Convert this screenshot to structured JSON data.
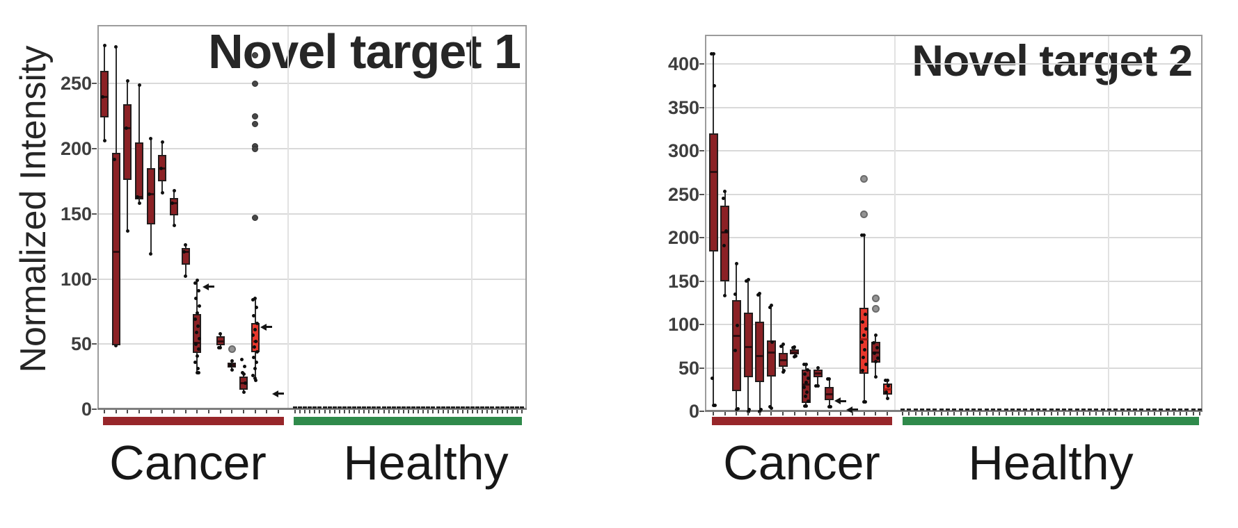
{
  "chart_data": [
    {
      "type": "box",
      "title": "Novel target 1",
      "ylabel": "Normalized Intensity",
      "xlabel": "",
      "ylim": [
        0,
        295
      ],
      "y_ticks": [
        0,
        50,
        100,
        150,
        200,
        250
      ],
      "grid": true,
      "legend_position": "none",
      "groups": [
        {
          "name": "Cancer",
          "color": "#97262a",
          "n_samples": 16
        },
        {
          "name": "Healthy",
          "color": "#2f8a4b",
          "n_samples": 47
        }
      ],
      "box_fill": "#8b2125",
      "box_fill_bright": "#e8372c",
      "point_color": "#111111",
      "gray_outlier_color": "#949494",
      "cancer_series": [
        {
          "kind": "box",
          "q1": 224,
          "median": 240,
          "q3": 260,
          "lo": 206,
          "hi": 279,
          "points": [
            240
          ]
        },
        {
          "kind": "box",
          "q1": 49,
          "median": 121,
          "q3": 197,
          "lo": 49,
          "hi": 278,
          "points": [
            192
          ]
        },
        {
          "kind": "box",
          "q1": 176,
          "median": 216,
          "q3": 234,
          "lo": 137,
          "hi": 252,
          "points": [
            216
          ]
        },
        {
          "kind": "box",
          "q1": 161,
          "median": 163,
          "q3": 205,
          "lo": 158,
          "hi": 249,
          "points": [
            163
          ]
        },
        {
          "kind": "box",
          "q1": 142,
          "median": 165,
          "q3": 185,
          "lo": 119,
          "hi": 208,
          "points": [
            165
          ]
        },
        {
          "kind": "box",
          "q1": 175,
          "median": 185,
          "q3": 195,
          "lo": 166,
          "hi": 205,
          "points": [
            185
          ]
        },
        {
          "kind": "box",
          "q1": 149,
          "median": 158,
          "q3": 162,
          "lo": 141,
          "hi": 168,
          "points": [
            158
          ]
        },
        {
          "kind": "box",
          "q1": 111,
          "median": 121,
          "q3": 124,
          "lo": 102,
          "hi": 126,
          "points": [
            121
          ]
        },
        {
          "kind": "box",
          "q1": 43,
          "median": 51,
          "q3": 73,
          "lo": 28,
          "hi": 99,
          "jitter": [
            97,
            91,
            85,
            79,
            74,
            69,
            64,
            59,
            54,
            50,
            46,
            41,
            36,
            31,
            28
          ]
        },
        {
          "kind": "dash",
          "value": 94
        },
        {
          "kind": "box",
          "q1": 49,
          "median": 52,
          "q3": 56,
          "lo": 47,
          "hi": 58,
          "points": [
            47
          ]
        },
        {
          "kind": "box",
          "q1": 32,
          "median": 34,
          "q3": 36,
          "lo": 30,
          "hi": 37,
          "gray_outliers": [
            46
          ],
          "points": [
            34
          ]
        },
        {
          "kind": "box",
          "q1": 15,
          "median": 20,
          "q3": 25,
          "lo": 13,
          "hi": 27,
          "points": [
            38,
            33,
            28,
            20
          ]
        },
        {
          "kind": "box",
          "q1": 44,
          "median": 52,
          "q3": 66,
          "lo": 24,
          "hi": 85,
          "bright": true,
          "dark_outliers": [
            272,
            250,
            225,
            219,
            202,
            200,
            147
          ],
          "jitter": [
            84,
            78,
            72,
            66,
            61,
            57,
            52,
            48,
            44,
            40,
            36,
            31,
            26,
            22
          ]
        },
        {
          "kind": "dash",
          "value": 63
        },
        {
          "kind": "dash",
          "value": 12
        }
      ],
      "healthy_series": {
        "n": 47,
        "value": 0
      }
    },
    {
      "type": "box",
      "title": "Novel target 2",
      "ylabel": "Normalized Intensity",
      "xlabel": "",
      "ylim": [
        0,
        434
      ],
      "y_ticks": [
        0,
        50,
        100,
        150,
        200,
        250,
        300,
        350,
        400
      ],
      "grid": true,
      "legend_position": "none",
      "groups": [
        {
          "name": "Cancer",
          "color": "#97262a",
          "n_samples": 16
        },
        {
          "name": "Healthy",
          "color": "#2f8a4b",
          "n_samples": 47
        }
      ],
      "box_fill": "#8b2125",
      "box_fill_bright": "#e8372c",
      "point_color": "#111111",
      "gray_outlier_color": "#949494",
      "cancer_series": [
        {
          "kind": "box",
          "q1": 184,
          "median": 276,
          "q3": 320,
          "lo": 7,
          "hi": 412,
          "points": [
            412,
            375,
            38,
            7
          ]
        },
        {
          "kind": "box",
          "q1": 150,
          "median": 206,
          "q3": 237,
          "lo": 133,
          "hi": 253,
          "points": [
            245,
            208,
            191
          ]
        },
        {
          "kind": "box",
          "q1": 23,
          "median": 87,
          "q3": 128,
          "lo": 2,
          "hi": 170,
          "points": [
            135,
            99,
            70,
            3
          ]
        },
        {
          "kind": "box",
          "q1": 39,
          "median": 74,
          "q3": 114,
          "lo": 0,
          "hi": 152,
          "points": [
            150,
            2
          ]
        },
        {
          "kind": "box",
          "q1": 34,
          "median": 64,
          "q3": 103,
          "lo": 0,
          "hi": 136,
          "points": [
            134,
            2
          ]
        },
        {
          "kind": "box",
          "q1": 40,
          "median": 68,
          "q3": 82,
          "lo": 4,
          "hi": 122,
          "points": [
            120,
            80,
            5
          ]
        },
        {
          "kind": "box",
          "q1": 51,
          "median": 59,
          "q3": 67,
          "lo": 45,
          "hi": 77,
          "points": [
            75,
            47
          ]
        },
        {
          "kind": "box",
          "q1": 66,
          "median": 68,
          "q3": 71,
          "lo": 63,
          "hi": 74,
          "points": [
            73,
            64
          ]
        },
        {
          "kind": "box",
          "q1": 10,
          "median": 31,
          "q3": 48,
          "lo": 6,
          "hi": 54,
          "jitter": [
            54,
            48,
            43,
            38,
            33,
            28,
            22,
            17,
            12,
            6
          ]
        },
        {
          "kind": "box",
          "q1": 39,
          "median": 44,
          "q3": 48,
          "lo": 29,
          "hi": 50,
          "points": [
            29
          ]
        },
        {
          "kind": "box",
          "q1": 13,
          "median": 20,
          "q3": 28,
          "lo": 5,
          "hi": 37,
          "points": [
            37,
            5
          ]
        },
        {
          "kind": "dash",
          "value": 12
        },
        {
          "kind": "dash",
          "value": 2
        },
        {
          "kind": "box",
          "q1": 43,
          "median": 83,
          "q3": 119,
          "lo": 11,
          "hi": 203,
          "bright": true,
          "gray_outliers": [
            268,
            227
          ],
          "jitter": [
            203,
            112,
            103,
            95,
            88,
            80,
            71,
            62,
            54,
            47,
            11
          ]
        },
        {
          "kind": "box",
          "q1": 56,
          "median": 68,
          "q3": 80,
          "lo": 40,
          "hi": 88,
          "gray_outliers": [
            130,
            118
          ],
          "jitter": [
            79,
            73,
            67,
            61,
            57
          ]
        },
        {
          "kind": "box",
          "q1": 19,
          "median": 25,
          "q3": 32,
          "lo": 15,
          "hi": 36,
          "bright": true,
          "points": [
            36,
            29,
            22
          ]
        }
      ],
      "healthy_series": {
        "n": 47,
        "value": 0
      }
    }
  ]
}
